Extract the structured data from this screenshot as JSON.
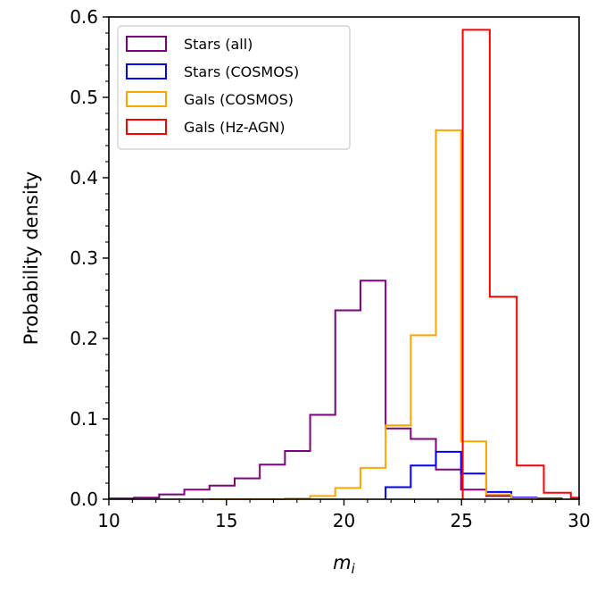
{
  "chart_data": {
    "type": "histogram",
    "xlabel": "m",
    "xlabel_sub": "i",
    "ylabel": "Probability density",
    "xlim": [
      10,
      30
    ],
    "ylim": [
      0,
      0.6
    ],
    "xticks": [
      10,
      15,
      20,
      25,
      30
    ],
    "xtick_labels": [
      "10",
      "15",
      "20",
      "25",
      "30"
    ],
    "yticks": [
      0.0,
      0.1,
      0.2,
      0.3,
      0.4,
      0.5,
      0.6
    ],
    "ytick_labels": [
      "0.0",
      "0.1",
      "0.2",
      "0.3",
      "0.4",
      "0.5",
      "0.6"
    ],
    "legend_position": "top-left",
    "series": [
      {
        "name": "Stars (all)",
        "color": "#800080",
        "edges": [
          10.0,
          11.07,
          12.14,
          13.21,
          14.28,
          15.35,
          16.42,
          17.49,
          18.56,
          19.63,
          20.7,
          21.77,
          22.84,
          23.91,
          24.98,
          26.05,
          27.12,
          28.19,
          29.26
        ],
        "values": [
          0.001,
          0.002,
          0.006,
          0.012,
          0.017,
          0.026,
          0.043,
          0.06,
          0.105,
          0.235,
          0.272,
          0.088,
          0.075,
          0.037,
          0.012,
          0.004,
          0.002,
          0.001
        ]
      },
      {
        "name": "Stars (COSMOS)",
        "color": "#0000ff",
        "edges": [
          21.77,
          22.84,
          23.91,
          24.98,
          26.05,
          27.12,
          28.19,
          29.26
        ],
        "values": [
          0.015,
          0.042,
          0.059,
          0.032,
          0.009,
          0.002,
          0.0005
        ]
      },
      {
        "name": "Gals (COSMOS)",
        "color": "#ffa500",
        "edges": [
          14.28,
          15.35,
          16.42,
          17.49,
          18.56,
          19.63,
          20.7,
          21.77,
          22.84,
          23.91,
          24.98,
          26.05,
          27.12,
          28.19,
          29.26
        ],
        "values": [
          0.0,
          0.0,
          0.0,
          0.001,
          0.004,
          0.014,
          0.039,
          0.092,
          0.204,
          0.459,
          0.072,
          0.006,
          0.001,
          0.0
        ]
      },
      {
        "name": "Gals (Hz-AGN)",
        "color": "#ff0000",
        "edges": [
          25.05,
          26.2,
          27.35,
          28.5,
          29.65,
          30.0
        ],
        "values": [
          0.584,
          0.252,
          0.042,
          0.008,
          0.002
        ]
      }
    ]
  }
}
